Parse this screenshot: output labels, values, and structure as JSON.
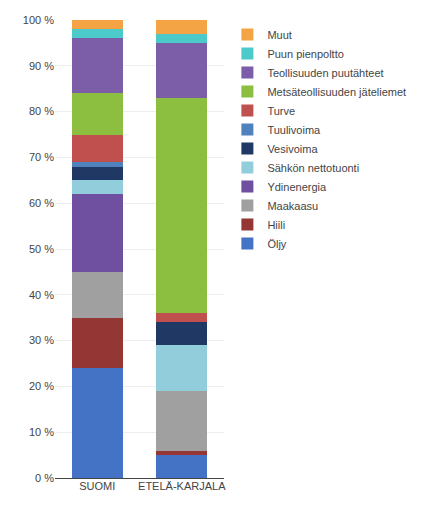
{
  "chart_data": {
    "type": "bar",
    "stacked": true,
    "categories": [
      "SUOMI",
      "ETELÄ-KARJALA"
    ],
    "series": [
      {
        "name": "Muut",
        "color": "#F4A444",
        "values": [
          2,
          3
        ]
      },
      {
        "name": "Puun pienpoltto",
        "color": "#4CC9C9",
        "values": [
          2,
          2
        ]
      },
      {
        "name": "Teollisuuden puutähteet",
        "color": "#7B5EA7",
        "values": [
          12,
          12
        ]
      },
      {
        "name": "Metsäteollisuuden jäteliemet",
        "color": "#8CBF3F",
        "values": [
          9,
          47
        ]
      },
      {
        "name": "Turve",
        "color": "#C0504D",
        "values": [
          6,
          2
        ]
      },
      {
        "name": "Tuulivoima",
        "color": "#4F81BD",
        "values": [
          1,
          0
        ]
      },
      {
        "name": "Vesivoima",
        "color": "#1F3864",
        "values": [
          3,
          5
        ]
      },
      {
        "name": "Sähkön nettotuonti",
        "color": "#92CDDC",
        "values": [
          3,
          10
        ]
      },
      {
        "name": "Ydinenergia",
        "color": "#6F4FA0",
        "values": [
          17,
          0
        ]
      },
      {
        "name": "Maakaasu",
        "color": "#A0A0A0",
        "values": [
          10,
          13
        ]
      },
      {
        "name": "Hiili",
        "color": "#943634",
        "values": [
          11,
          1
        ]
      },
      {
        "name": "Öljy",
        "color": "#4472C4",
        "values": [
          24,
          5
        ]
      }
    ],
    "ylim": [
      0,
      100
    ],
    "yticks": [
      {
        "value": 0,
        "label": "0 %"
      },
      {
        "value": 10,
        "label": "10 %"
      },
      {
        "value": 20,
        "label": "20 %"
      },
      {
        "value": 30,
        "label": "30 %"
      },
      {
        "value": 40,
        "label": "40 %"
      },
      {
        "value": 50,
        "label": "50 %"
      },
      {
        "value": 60,
        "label": "60 %"
      },
      {
        "value": 70,
        "label": "70 %"
      },
      {
        "value": 80,
        "label": "80 %"
      },
      {
        "value": 90,
        "label": "90 %"
      },
      {
        "value": 100,
        "label": "100 %"
      }
    ],
    "grid": true,
    "legend": "right"
  }
}
